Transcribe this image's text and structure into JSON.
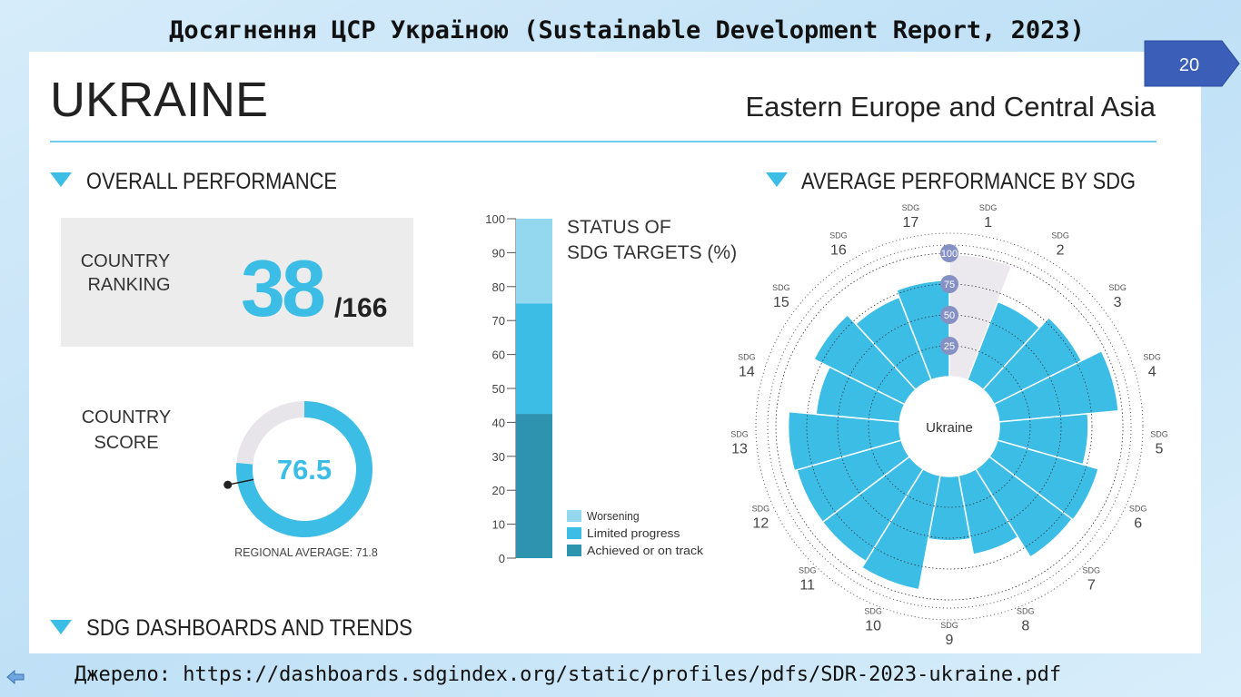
{
  "slide": {
    "title": "Досягнення ЦСР Україною (Sustainable Development Report, 2023)",
    "page_number": "20",
    "source": "Джерело: https://dashboards.sdgindex.org/static/profiles/pdfs/SDR-2023-ukraine.pdf"
  },
  "profile": {
    "country": "UKRAINE",
    "region": "Eastern Europe and Central Asia",
    "sections": [
      "OVERALL PERFORMANCE",
      "AVERAGE PERFORMANCE BY SDG",
      "SDG DASHBOARDS AND TRENDS"
    ],
    "ranking_label": [
      "COUNTRY",
      "RANKING"
    ],
    "rank": 38,
    "rank_total": "/166"
  },
  "chart_data": [
    {
      "type": "donut",
      "title_lines": [
        "COUNTRY",
        "SCORE"
      ],
      "value": 76.5,
      "ylim": [
        0,
        100
      ],
      "color": "#3cbde6",
      "track_color": "#e7e5ea",
      "reference": 71.8,
      "reference_label": "REGIONAL AVERAGE: 71.8"
    },
    {
      "type": "stacked-bar",
      "title_lines": [
        "STATUS OF",
        "SDG TARGETS (%)"
      ],
      "ylim": [
        0,
        100
      ],
      "yticks": [
        0,
        10,
        20,
        30,
        40,
        50,
        60,
        70,
        80,
        90,
        100
      ],
      "series": [
        {
          "name": "Achieved or on track",
          "color": "#2e93ae",
          "values": [
            42.5
          ]
        },
        {
          "name": "Limited progress",
          "color": "#3cbde6",
          "values": [
            32.5
          ]
        },
        {
          "name": "Worsening",
          "color": "#93d8ef",
          "values": [
            25
          ]
        }
      ]
    },
    {
      "type": "polar-bar",
      "center_label": "Ukraine",
      "category_prefix": "SDG",
      "categories": [
        "1",
        "2",
        "3",
        "4",
        "5",
        "6",
        "7",
        "8",
        "9",
        "10",
        "11",
        "12",
        "13",
        "14",
        "15",
        "16",
        "17"
      ],
      "values": [
        99,
        68,
        79,
        97,
        72,
        85,
        84,
        65,
        52,
        94,
        88,
        88,
        90,
        68,
        82,
        72,
        78
      ],
      "colors": [
        "#ebe8ee",
        "#3cbde6",
        "#3cbde6",
        "#3cbde6",
        "#3cbde6",
        "#3cbde6",
        "#3cbde6",
        "#3cbde6",
        "#3cbde6",
        "#3cbde6",
        "#3cbde6",
        "#3cbde6",
        "#3cbde6",
        "#3cbde6",
        "#3cbde6",
        "#3cbde6",
        "#3cbde6"
      ],
      "ylim": [
        0,
        100
      ],
      "yticks": [
        25,
        50,
        75,
        100
      ]
    }
  ]
}
